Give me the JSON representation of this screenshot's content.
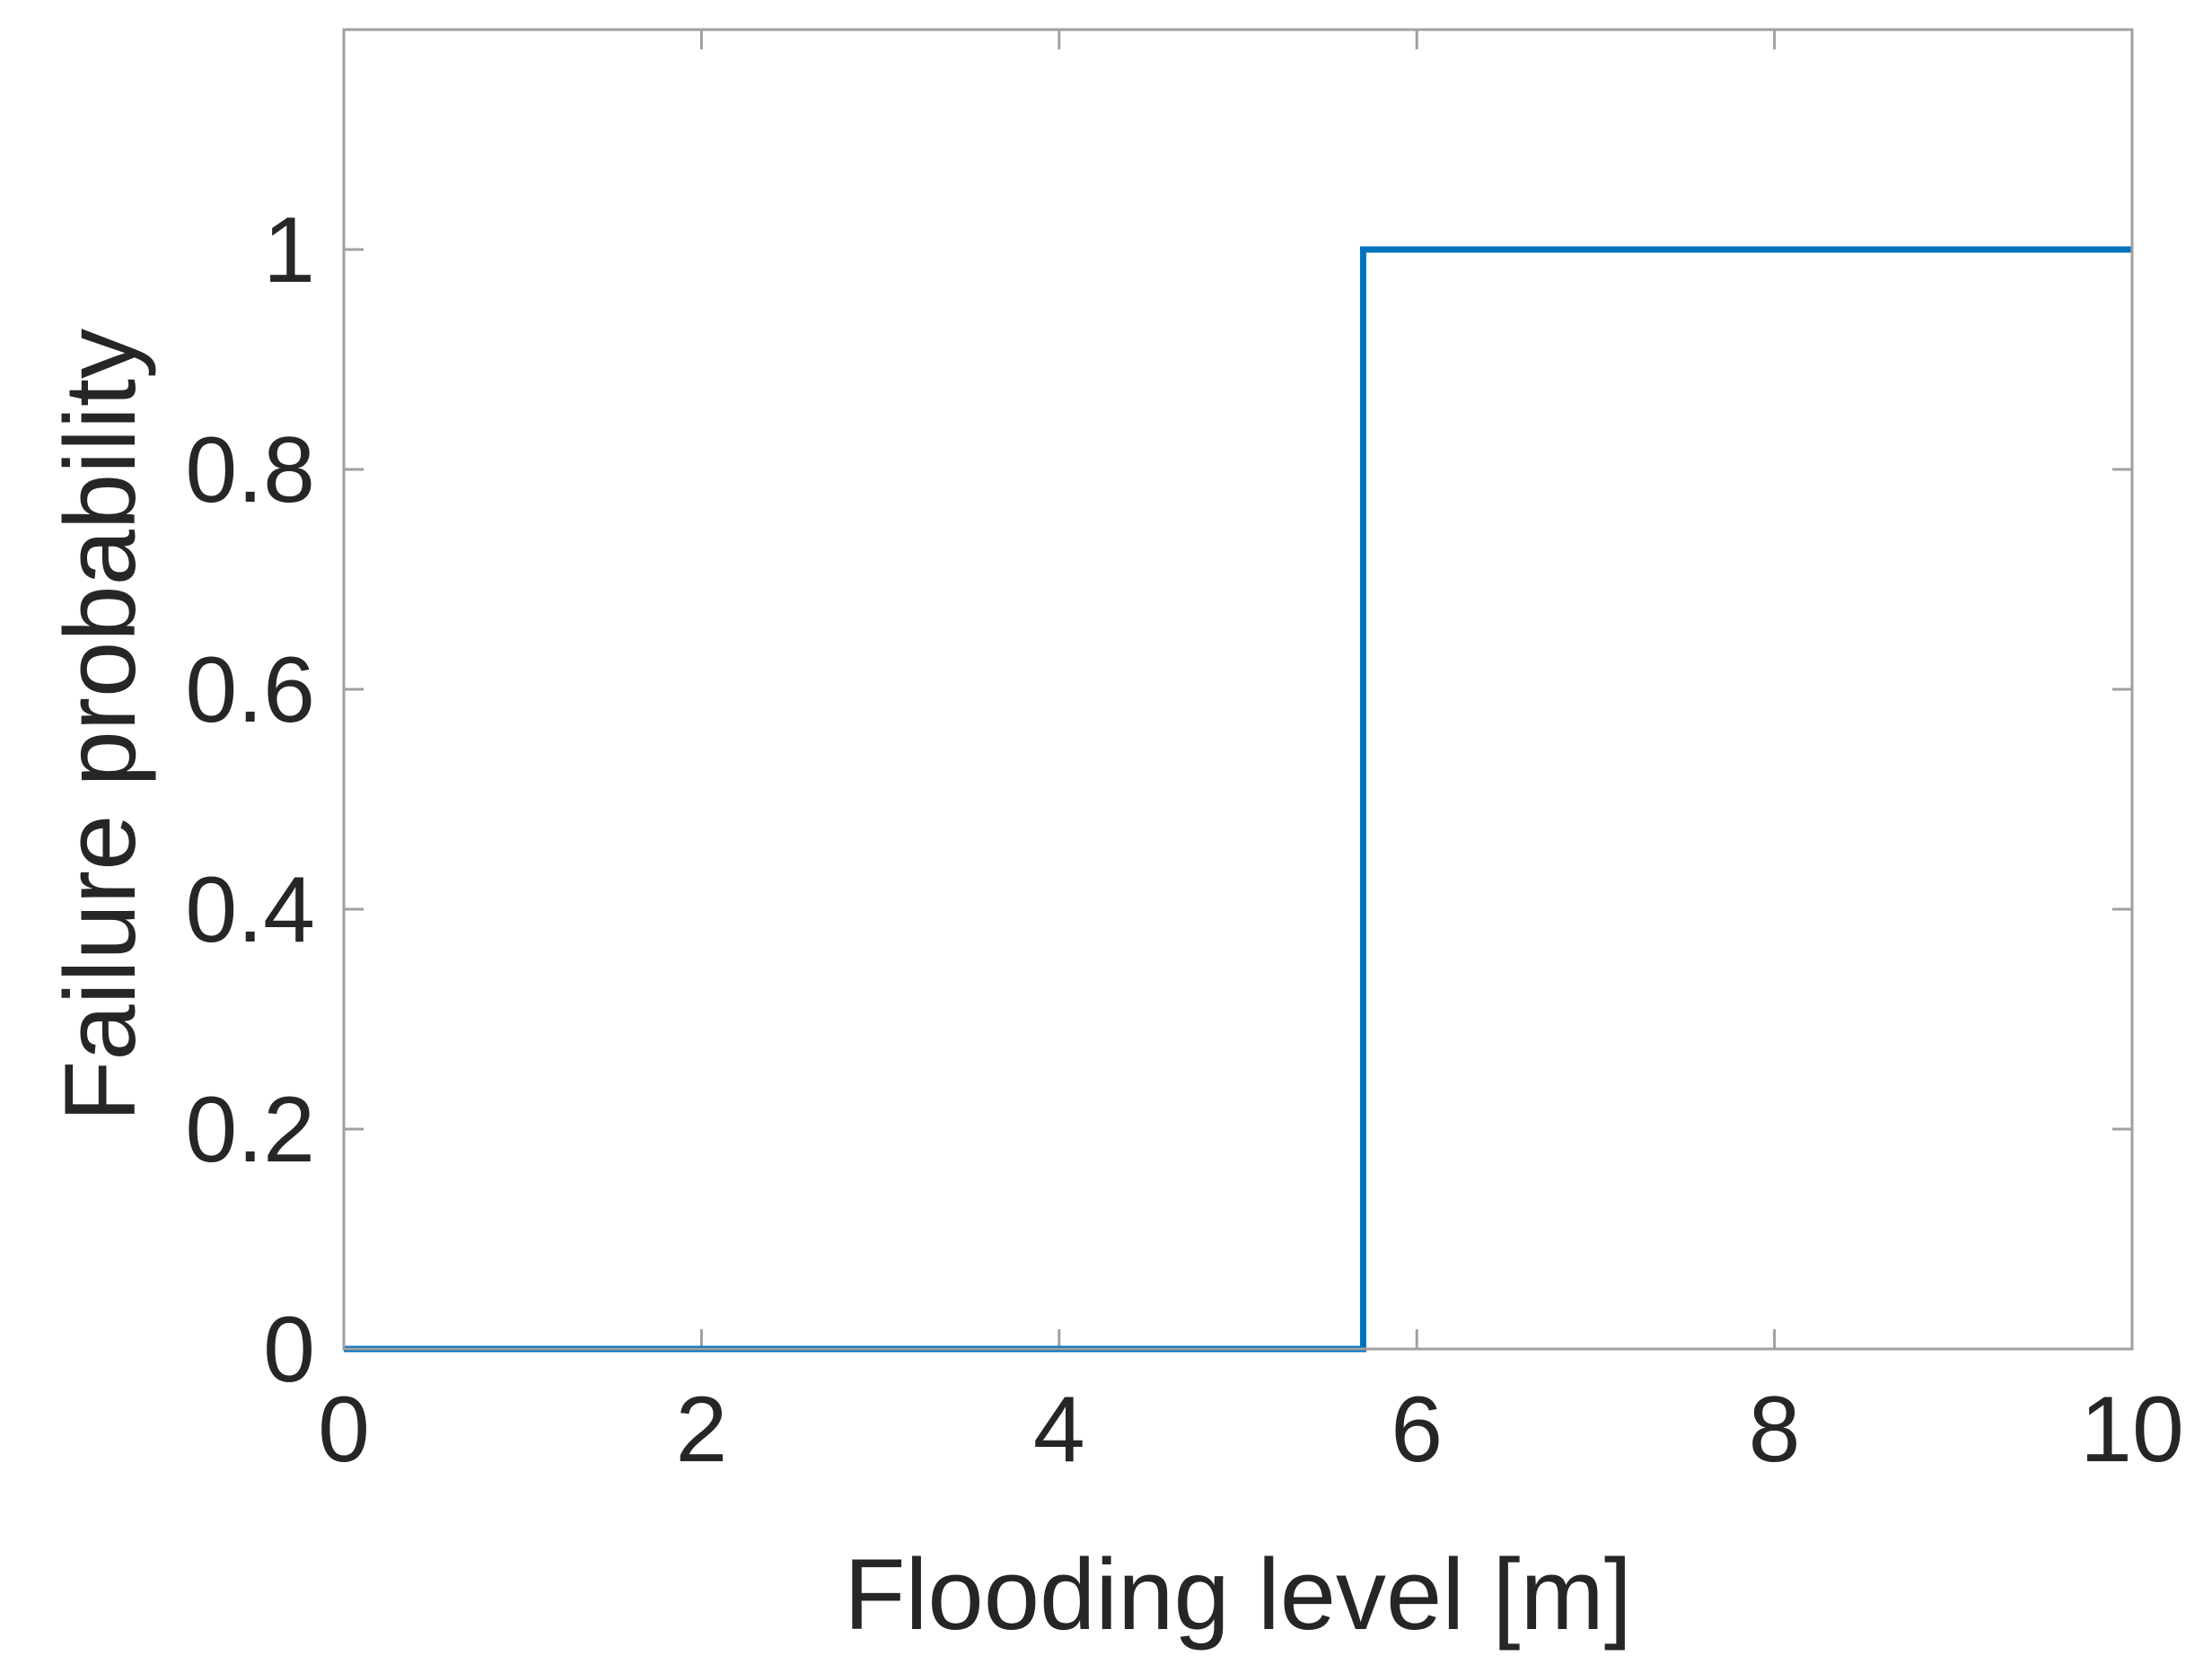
{
  "chart_data": {
    "type": "line",
    "title": "",
    "xlabel": "Flooding level [m]",
    "ylabel": "Failure probability",
    "xlim": [
      0,
      10
    ],
    "ylim": [
      0,
      1.2
    ],
    "grid": false,
    "legend": "none",
    "xticks": [
      0,
      2,
      4,
      6,
      8,
      10
    ],
    "xtick_labels": [
      "0",
      "2",
      "4",
      "6",
      "8",
      "10"
    ],
    "yticks": [
      0,
      0.2,
      0.4,
      0.6,
      0.8,
      1
    ],
    "ytick_labels": [
      "0",
      "0.2",
      "0.4",
      "0.6",
      "0.8",
      "1"
    ],
    "series": [
      {
        "color": "#0072BD",
        "x": [
          0,
          5.7,
          5.7,
          10
        ],
        "y": [
          0,
          0,
          1,
          1
        ]
      }
    ],
    "axis_color": "#262626",
    "tick_color": "#a0a0a0"
  }
}
